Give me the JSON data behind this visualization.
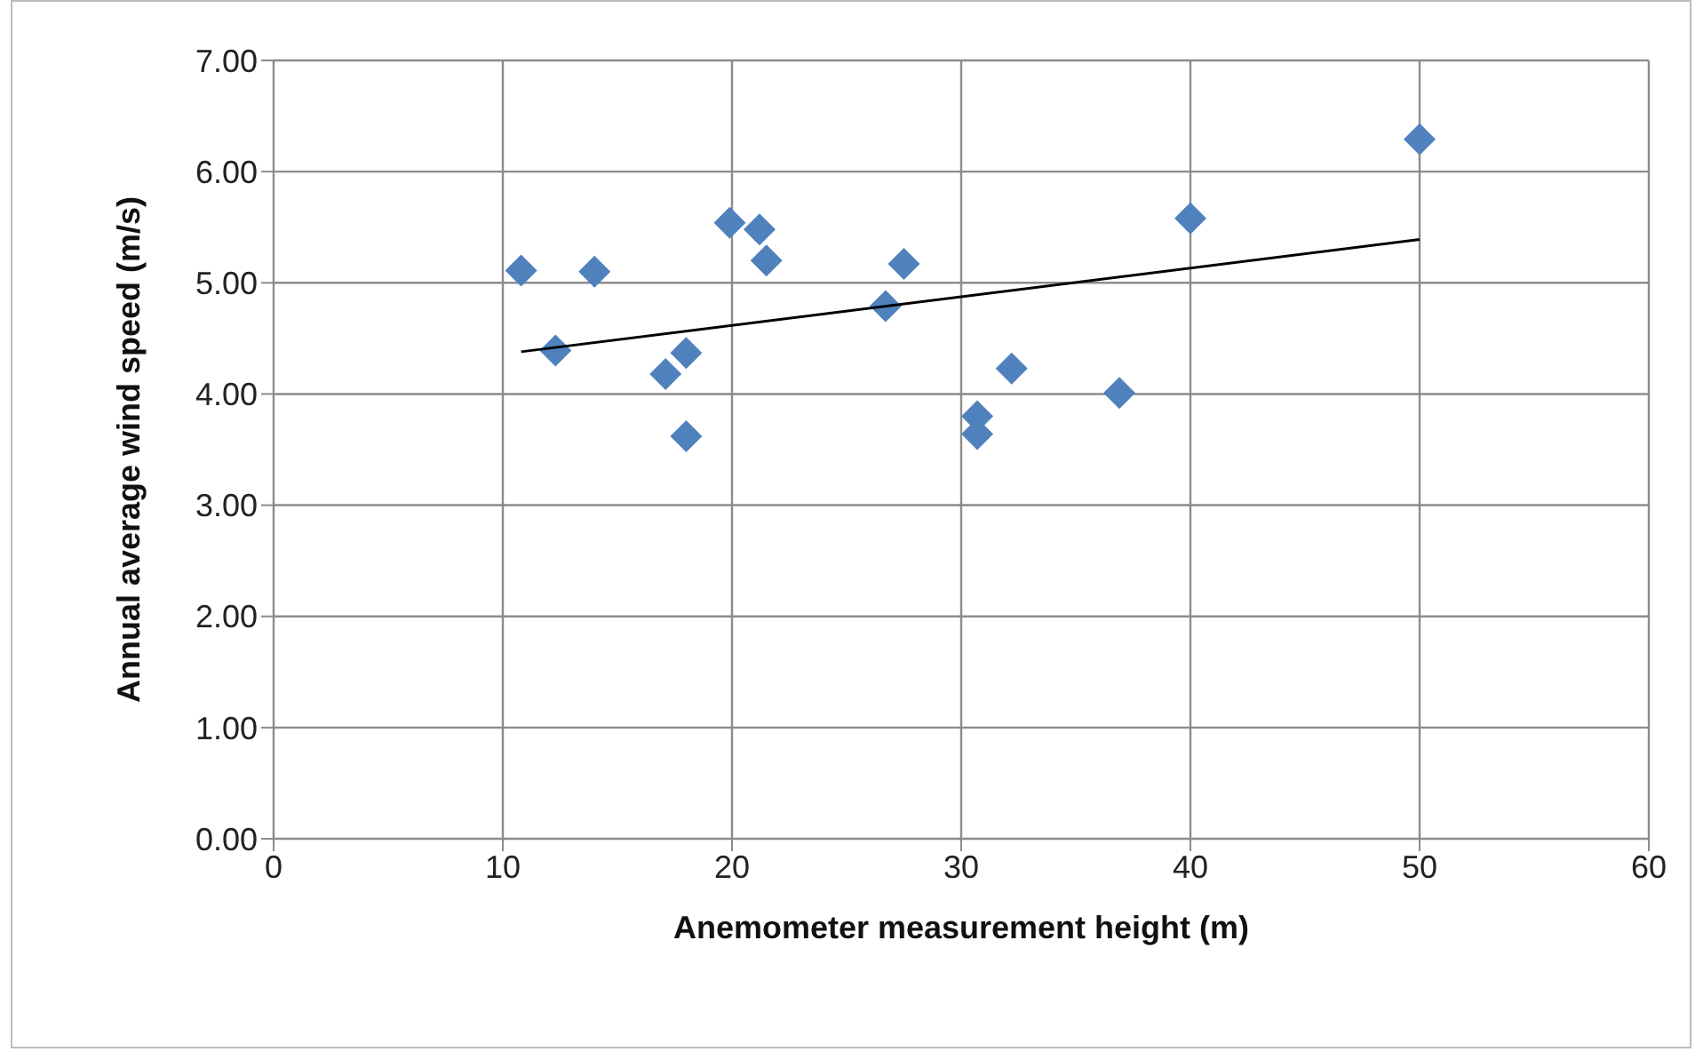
{
  "chart_data": {
    "type": "scatter",
    "xlabel": "Anemometer measurement height (m)",
    "ylabel": "Annual average wind speed (m/s)",
    "xlim": [
      0,
      60
    ],
    "xticks": [
      0,
      10,
      20,
      30,
      40,
      50,
      60
    ],
    "ylim": [
      0,
      7
    ],
    "yticks": [
      {
        "value": 0,
        "label": "0.00"
      },
      {
        "value": 1,
        "label": "1.00"
      },
      {
        "value": 2,
        "label": "2.00"
      },
      {
        "value": 3,
        "label": "3.00"
      },
      {
        "value": 4,
        "label": "4.00"
      },
      {
        "value": 5,
        "label": "5.00"
      },
      {
        "value": 6,
        "label": "6.00"
      },
      {
        "value": 7,
        "label": "7.00"
      }
    ],
    "grid": true,
    "marker": "diamond",
    "series": [
      {
        "color": "#4f81bd",
        "x": [
          10.8,
          12.3,
          14.0,
          19.9,
          21.2,
          21.5,
          27.5,
          26.7,
          18.0,
          17.1,
          18.0,
          32.2,
          30.7,
          30.7,
          36.9,
          40.0,
          50.0
        ],
        "values": [
          5.11,
          4.39,
          5.1,
          5.54,
          5.48,
          5.2,
          5.17,
          4.79,
          4.37,
          4.18,
          3.62,
          4.23,
          3.8,
          3.64,
          4.01,
          5.58,
          6.29
        ]
      },
      {
        "type": "line",
        "color": "#000000",
        "x": [
          10.8,
          50.0
        ],
        "values": [
          4.38,
          5.39
        ],
        "marker": "none",
        "line_style": "solid"
      }
    ]
  }
}
